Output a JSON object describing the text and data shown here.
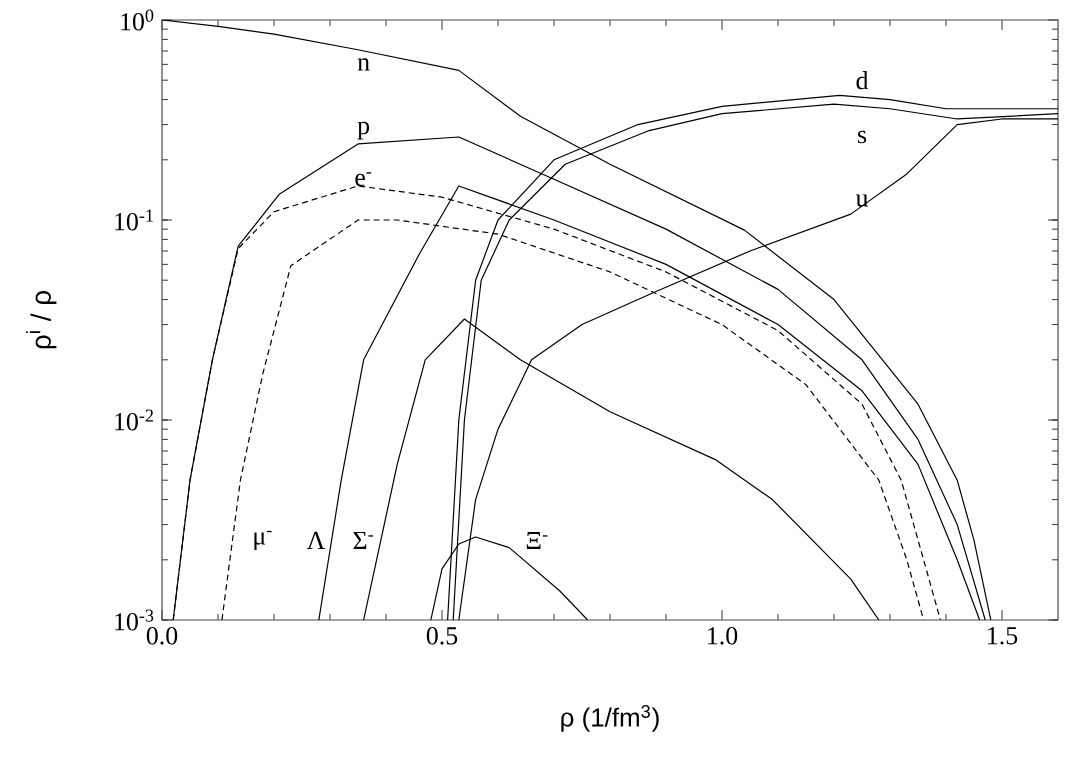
{
  "chart_data": {
    "type": "line",
    "xlabel": "ρ   (1/fm$^{3}$)",
    "ylabel": "ρ$^{i}$ / ρ",
    "log": "y",
    "xlim": [
      0,
      1.6
    ],
    "ylim": [
      0.001,
      1
    ],
    "xticks": [
      {
        "value": 0,
        "label": "0.0"
      },
      {
        "value": 0.5,
        "label": "0.5"
      },
      {
        "value": 1,
        "label": "1.0"
      },
      {
        "value": 1.5,
        "label": "1.5"
      }
    ],
    "yticks": [
      {
        "value": 0.001,
        "label": "10$^{-3}$"
      },
      {
        "value": 0.01,
        "label": "10$^{-2}$"
      },
      {
        "value": 0.1,
        "label": "10$^{-1}$"
      },
      {
        "value": 1,
        "label": "10$^{0}$"
      }
    ],
    "grid": false,
    "legend": false,
    "marker": "none",
    "series": [
      {
        "name": "n",
        "color": "#000000",
        "line_style": "solid",
        "x": [
          0,
          0.1,
          0.2,
          0.35,
          0.53,
          0.64,
          0.8,
          1.04,
          1.2,
          1.35,
          1.42,
          1.45,
          1.48
        ],
        "values": [
          1,
          0.93,
          0.85,
          0.71,
          0.56,
          0.33,
          0.19,
          0.089,
          0.04,
          0.012,
          0.005,
          0.0025,
          0.001
        ]
      },
      {
        "name": "p",
        "color": "#000000",
        "line_style": "solid",
        "x": [
          0.02,
          0.05,
          0.09,
          0.136,
          0.21,
          0.35,
          0.53,
          0.7,
          0.9,
          1.1,
          1.25,
          1.35,
          1.42,
          1.47
        ],
        "values": [
          0.001,
          0.005,
          0.02,
          0.074,
          0.135,
          0.24,
          0.26,
          0.16,
          0.09,
          0.045,
          0.02,
          0.008,
          0.003,
          0.001
        ]
      },
      {
        "name": "e$^{-}$",
        "color": "#000000",
        "line_style": "dashed",
        "x": [
          0.02,
          0.05,
          0.09,
          0.136,
          0.2,
          0.35,
          0.5,
          0.7,
          0.9,
          1.1,
          1.25,
          1.32,
          1.36,
          1.39
        ],
        "values": [
          0.001,
          0.005,
          0.02,
          0.072,
          0.11,
          0.148,
          0.13,
          0.09,
          0.055,
          0.028,
          0.012,
          0.005,
          0.002,
          0.001
        ]
      },
      {
        "name": "μ$^{-}$",
        "color": "#000000",
        "line_style": "dashed",
        "x": [
          0.107,
          0.14,
          0.18,
          0.23,
          0.35,
          0.42,
          0.6,
          0.8,
          1.0,
          1.15,
          1.28,
          1.33,
          1.36
        ],
        "values": [
          0.001,
          0.005,
          0.017,
          0.059,
          0.1,
          0.1,
          0.085,
          0.055,
          0.03,
          0.015,
          0.005,
          0.002,
          0.001
        ]
      },
      {
        "name": "Λ",
        "color": "#000000",
        "line_style": "solid",
        "x": [
          0.28,
          0.32,
          0.36,
          0.46,
          0.53,
          0.7,
          0.9,
          1.1,
          1.25,
          1.35,
          1.42,
          1.46
        ],
        "values": [
          0.001,
          0.005,
          0.02,
          0.068,
          0.148,
          0.1,
          0.06,
          0.03,
          0.014,
          0.006,
          0.002,
          0.001
        ]
      },
      {
        "name": "Σ$^{-}$",
        "color": "#000000",
        "line_style": "solid",
        "x": [
          0.36,
          0.42,
          0.47,
          0.54,
          0.64,
          0.8,
          0.99,
          1.09,
          1.23,
          1.28
        ],
        "values": [
          0.001,
          0.006,
          0.02,
          0.032,
          0.02,
          0.011,
          0.0063,
          0.004,
          0.0016,
          0.001
        ]
      },
      {
        "name": "Ξ$^{-}$",
        "color": "#000000",
        "line_style": "solid",
        "x": [
          0.48,
          0.5,
          0.53,
          0.56,
          0.62,
          0.71,
          0.76
        ],
        "values": [
          0.001,
          0.0018,
          0.0024,
          0.0026,
          0.0023,
          0.0014,
          0.001
        ]
      },
      {
        "name": "d",
        "color": "#000000",
        "line_style": "solid",
        "x": [
          0.51,
          0.53,
          0.56,
          0.6,
          0.7,
          0.85,
          1.0,
          1.21,
          1.3,
          1.4,
          1.6
        ],
        "values": [
          0.001,
          0.01,
          0.05,
          0.1,
          0.2,
          0.3,
          0.37,
          0.42,
          0.4,
          0.36,
          0.36
        ]
      },
      {
        "name": "s",
        "color": "#000000",
        "line_style": "solid",
        "x": [
          0.52,
          0.54,
          0.57,
          0.62,
          0.72,
          0.87,
          1.0,
          1.2,
          1.3,
          1.42,
          1.6
        ],
        "values": [
          0.001,
          0.01,
          0.05,
          0.1,
          0.19,
          0.28,
          0.34,
          0.38,
          0.36,
          0.32,
          0.34
        ]
      },
      {
        "name": "u",
        "color": "#000000",
        "line_style": "solid",
        "x": [
          0.53,
          0.56,
          0.6,
          0.66,
          0.75,
          0.875,
          1.05,
          1.23,
          1.33,
          1.42,
          1.5,
          1.6
        ],
        "values": [
          0.001,
          0.004,
          0.009,
          0.02,
          0.03,
          0.043,
          0.07,
          0.107,
          0.17,
          0.3,
          0.32,
          0.32
        ]
      }
    ]
  }
}
